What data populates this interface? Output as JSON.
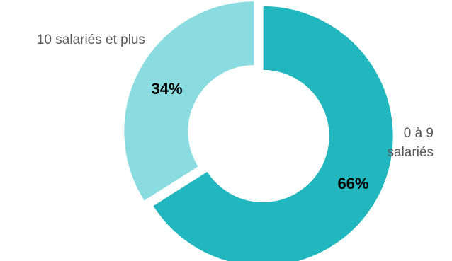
{
  "chart_data": {
    "type": "pie",
    "variant": "donut",
    "title": "",
    "slices": [
      {
        "label_lines": [
          "0 à 9",
          "salariés"
        ],
        "value": 66,
        "display": "66%",
        "color": "#22B6BE"
      },
      {
        "label_lines": [
          "10 salariés et plus"
        ],
        "value": 34,
        "display": "34%",
        "color": "#8BDCE1"
      }
    ],
    "legend": "none",
    "start": "top",
    "direction": "clockwise"
  }
}
